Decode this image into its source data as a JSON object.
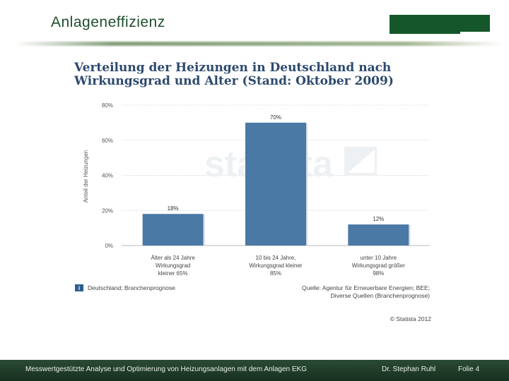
{
  "slide": {
    "title": "Anlageneffizienz"
  },
  "chart_data": {
    "type": "bar",
    "title": "Verteilung der Heizungen in Deutschland nach Wirkungsgrad und Alter (Stand: Oktober 2009)",
    "ylabel": "Anteil der Heizungen",
    "xlabel": "",
    "ylim": [
      0,
      80
    ],
    "yticks": [
      "0%",
      "20%",
      "40%",
      "60%",
      "80%"
    ],
    "categories": [
      [
        "Älter als 24 Jahre",
        "Wirkungsgrad",
        "kleiner 65%"
      ],
      [
        "10 bis 24 Jahre,",
        "Wirkungsgrad kleiner",
        "85%"
      ],
      [
        "unter 10 Jahre",
        "Wirkungsgrad größer",
        "98%"
      ]
    ],
    "values": [
      18,
      70,
      12
    ],
    "data_labels": [
      "18%",
      "70%",
      "12%"
    ],
    "bar_color": "#4a79a5",
    "grid": true,
    "watermark": "statista",
    "info_icon": "i",
    "note": "Deutschland; Branchenprognose",
    "source": [
      "Quelle: Agentur für Erneuerbare Energien; BEE;",
      "Diverse Quellen (Branchenprognose)"
    ],
    "copyright": "© Statista 2012"
  },
  "footer": {
    "description": "Messwertgestützte Analyse und Optimierung von Heizungsanlagen mit dem Anlagen EKG",
    "author": "Dr. Stephan Ruhl",
    "page": "Folie 4"
  }
}
